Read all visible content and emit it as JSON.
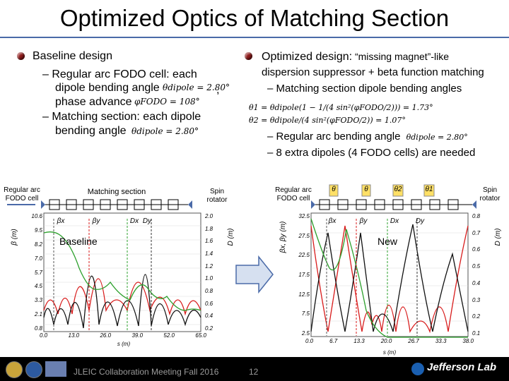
{
  "title": "Optimized Optics of Matching Section",
  "left": {
    "heading": "Baseline design",
    "sub1_line1": "– Regular arc FODO cell: each",
    "sub1_line2": "dipole bending angle",
    "sub1_line3": "phase advance",
    "sub2_line1": "– Matching section: each dipole",
    "sub2_line2": "bending angle",
    "eq_theta": "θdipole = 2.80°",
    "eq_phi": "φFODO = 108°",
    "eq_theta2": "θdipole = 2.80°",
    "comma": ","
  },
  "right": {
    "heading_a": "Optimized design:",
    "heading_b": " “missing magnet”-like",
    "heading_line2": "dispersion suppressor + beta function matching",
    "sub1": "– Matching section dipole bending angles",
    "eq1": "θ1 = θdipole(1 − 1/(4 sin²(φFODO/2))) = 1.73°",
    "eq2": "θ2 = θdipole/(4 sin²(φFODO/2)) = 1.07°",
    "sub2": "– Regular arc bending angle",
    "eq3": "θdipole = 2.80°",
    "sub3": "– 8 extra dipoles (4 FODO cells) are needed"
  },
  "left_plot": {
    "label_arc": "Regular arc FODO cell",
    "label_matching": "Matching section",
    "label_spin": "Spin rotator",
    "callout": "Baseline",
    "y_left_label": "β (m)",
    "y_right_label": "D (m)",
    "x_label": "s (m)",
    "y_ticks_left": [
      "10.6",
      "9.5",
      "8.2",
      "7.0",
      "5.7",
      "4.5",
      "3.3",
      "2.1",
      "0.8"
    ],
    "y_ticks_right": [
      "2.0",
      "1.8",
      "1.6",
      "1.4",
      "1.2",
      "1.0",
      "0.8",
      "0.6",
      "0.4",
      "0.2"
    ],
    "x_ticks": [
      "0.0",
      "13.0",
      "26.0",
      "39.0",
      "52.0",
      "65.0"
    ],
    "marks": [
      "βx",
      "βy",
      "Dx",
      "Dy"
    ]
  },
  "right_plot": {
    "label_arc": "Regular arc FODO cell",
    "label_spin": "Spin rotator",
    "callout": "New",
    "theta_labels": [
      "θ",
      "θ",
      "θ2",
      "θ1"
    ],
    "y_left_label": "βx, βy (m)",
    "y_right_label": "D (m)",
    "x_label": "s (m)",
    "y_ticks_left": [
      "32.5",
      "27.5",
      "22.5",
      "17.5",
      "12.5",
      "7.5",
      "2.5"
    ],
    "y_ticks_right": [
      "0.8",
      "0.7",
      "0.6",
      "0.5",
      "0.4",
      "0.3",
      "0.2",
      "0.1"
    ],
    "x_ticks": [
      "0.0",
      "6.7",
      "13.3",
      "20.0",
      "26.7",
      "33.3",
      "38.0"
    ],
    "marks": [
      "βx",
      "βy",
      "Dx",
      "Dy"
    ]
  },
  "footer": {
    "meeting": "JLEIC Collaboration Meeting Fall 2016",
    "page": "12",
    "lab": "Jefferson Lab"
  },
  "colors": {
    "betax": "#d81b1b",
    "betay": "#111111",
    "dispersion": "#2ca02c",
    "accent": "#4a6aa8",
    "bullet": "#8e1b1b",
    "callout_fill": "#ffffff"
  }
}
